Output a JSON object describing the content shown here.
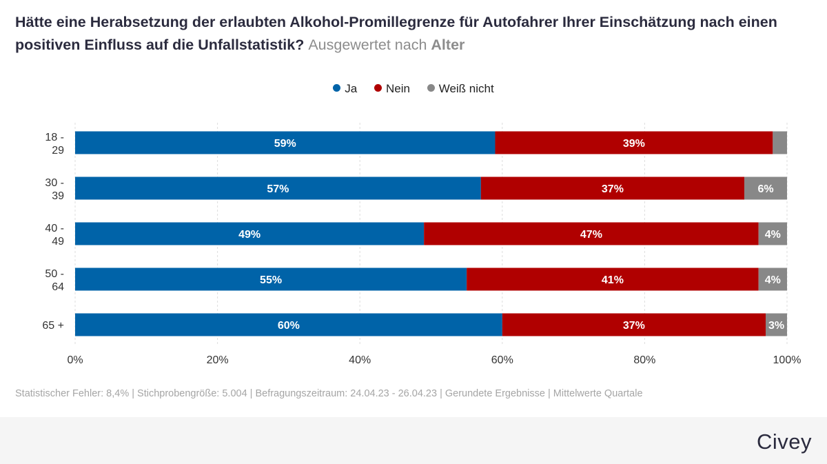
{
  "title": {
    "main": "Hätte eine Herabsetzung der erlaubten Alkohol-Promillegrenze für Autofahrer Ihrer Einschätzung nach einen positiven Einfluss auf die Unfallstatistik?",
    "sub_prefix": "Ausgewertet nach",
    "sub_bold": "Alter"
  },
  "legend": [
    {
      "label": "Ja",
      "color": "#0063a8"
    },
    {
      "label": "Nein",
      "color": "#b00000"
    },
    {
      "label": "Weiß nicht",
      "color": "#888888"
    }
  ],
  "chart_data": {
    "type": "bar",
    "orientation": "horizontal",
    "stacked": true,
    "categories": [
      [
        "18 -",
        "29"
      ],
      [
        "30 -",
        "39"
      ],
      [
        "40 -",
        "49"
      ],
      [
        "50 -",
        "64"
      ],
      [
        "65 +"
      ]
    ],
    "series": [
      {
        "name": "Ja",
        "color": "#0063a8",
        "values": [
          59,
          57,
          49,
          55,
          60
        ],
        "labels": [
          "59%",
          "57%",
          "49%",
          "55%",
          "60%"
        ]
      },
      {
        "name": "Nein",
        "color": "#b00000",
        "values": [
          39,
          37,
          47,
          41,
          37
        ],
        "labels": [
          "39%",
          "37%",
          "47%",
          "41%",
          "37%"
        ]
      },
      {
        "name": "Weiß nicht",
        "color": "#888888",
        "values": [
          2,
          6,
          4,
          4,
          3
        ],
        "labels": [
          "",
          "6%",
          "4%",
          "4%",
          "3%"
        ]
      }
    ],
    "xlim": [
      0,
      100
    ],
    "xticks": [
      "0%",
      "20%",
      "40%",
      "60%",
      "80%",
      "100%"
    ],
    "grid": true
  },
  "footer": "Statistischer Fehler: 8,4% | Stichprobengröße: 5.004 | Befragungszeitraum: 24.04.23 - 26.04.23 | Gerundete Ergebnisse | Mittelwerte Quartale",
  "logo": "Civey"
}
